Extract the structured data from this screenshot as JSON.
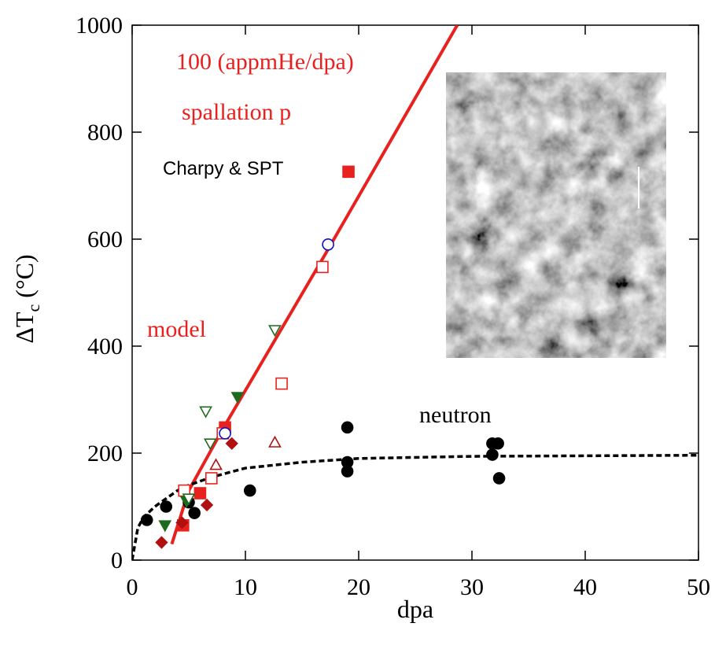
{
  "chart_data": {
    "type": "scatter",
    "xlabel": "dpa",
    "ylabel": [
      "ΔT",
      "c",
      " (°C)"
    ],
    "xlim": [
      0,
      50
    ],
    "ylim": [
      0,
      1000
    ],
    "xticks": [
      0,
      10,
      20,
      30,
      40,
      50
    ],
    "yticks": [
      0,
      200,
      400,
      600,
      800,
      1000
    ],
    "annotations": [
      {
        "text": "100 (appmHe/dpa)",
        "color": "#e8211e"
      },
      {
        "text": "spallation p",
        "color": "#e8211e"
      },
      {
        "text": "Charpy & SPT",
        "color": "#000000"
      },
      {
        "text": "model",
        "color": "#e8211e"
      },
      {
        "text": "neutron",
        "color": "#000000"
      }
    ],
    "series": [
      {
        "style": "line-solid",
        "color": "#e8211e",
        "x": [
          3.5,
          5,
          8,
          17,
          28.7
        ],
        "values": [
          30,
          130,
          245,
          570,
          1000
        ]
      },
      {
        "style": "line-dashed",
        "color": "#000000",
        "x": [
          0,
          0.5,
          1,
          2,
          3,
          4,
          5,
          7,
          10,
          15,
          20,
          30,
          50
        ],
        "values": [
          0,
          60,
          80,
          100,
          115,
          130,
          140,
          155,
          172,
          183,
          190,
          194,
          196
        ]
      },
      {
        "style": "circle",
        "filled": true,
        "color": "#000000",
        "x": [
          1.3,
          3,
          5,
          5.5,
          10.4,
          19,
          19,
          19,
          31.8,
          32.3,
          31.8,
          32.4
        ],
        "values": [
          75,
          100,
          108,
          88,
          130,
          248,
          183,
          166,
          218,
          218,
          197,
          153
        ]
      },
      {
        "style": "square",
        "filled": true,
        "color": "#e8211e",
        "x": [
          4.5,
          6,
          8.2,
          19.1
        ],
        "values": [
          65,
          125,
          248,
          726
        ]
      },
      {
        "style": "square",
        "filled": false,
        "color": "#e8211e",
        "x": [
          4.6,
          7,
          8,
          13.2,
          16.8
        ],
        "values": [
          130,
          153,
          237,
          330,
          548
        ]
      },
      {
        "style": "circle",
        "filled": false,
        "color": "#1010c0",
        "x": [
          8.2,
          17.3
        ],
        "values": [
          237,
          590
        ]
      },
      {
        "style": "triangle-down",
        "filled": true,
        "color": "#1e6b1e",
        "x": [
          2.9,
          4.8,
          9.3
        ],
        "values": [
          65,
          110,
          305
        ]
      },
      {
        "style": "triangle-down",
        "filled": false,
        "color": "#1e6b1e",
        "x": [
          5,
          6.5,
          6.9,
          12.6
        ],
        "values": [
          115,
          278,
          218,
          430
        ]
      },
      {
        "style": "triangle-up",
        "filled": false,
        "color": "#b01010",
        "x": [
          7.4,
          12.6
        ],
        "values": [
          178,
          220
        ]
      },
      {
        "style": "diamond",
        "filled": true,
        "color": "#b01010",
        "x": [
          2.6,
          4.4,
          6.6,
          8.8
        ],
        "values": [
          33,
          70,
          103,
          218
        ]
      }
    ]
  }
}
